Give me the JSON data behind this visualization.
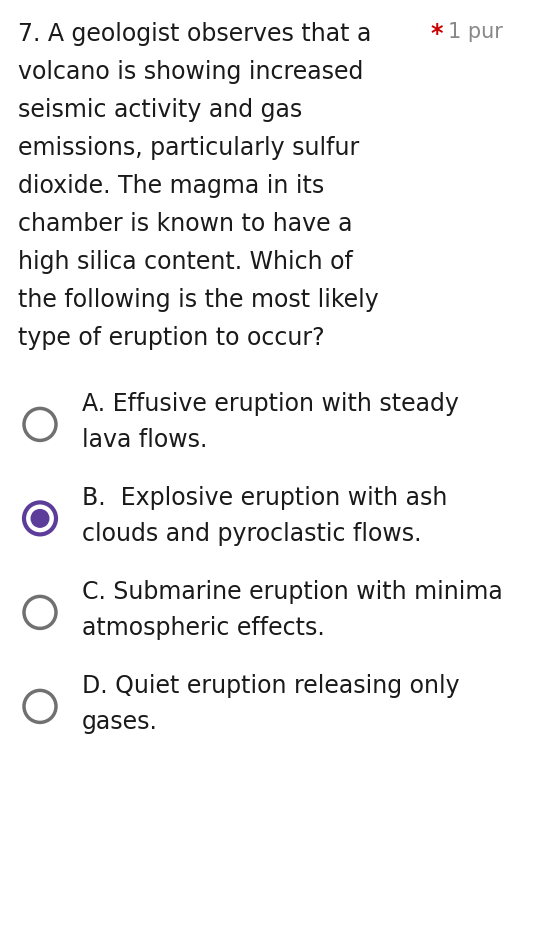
{
  "background_color": "#ffffff",
  "question_number": "7.",
  "question_text_lines": [
    "A geologist observes that a",
    "volcano is showing increased",
    "seismic activity and gas",
    "emissions, particularly sulfur",
    "dioxide. The magma in its",
    "chamber is known to have a",
    "high silica content. Which of",
    "the following is the most likely",
    "type of eruption to occur?"
  ],
  "header_star": "*",
  "header_points": "1 pur",
  "header_star_color": "#cc0000",
  "header_points_color": "#888888",
  "options": [
    {
      "label": "A.",
      "lines": [
        "Effusive eruption with steady",
        "lava flows."
      ],
      "selected": false
    },
    {
      "label": "B. ",
      "lines": [
        "Explosive eruption with ash",
        "clouds and pyroclastic flows."
      ],
      "selected": true
    },
    {
      "label": "C.",
      "lines": [
        "Submarine eruption with minima",
        "atmospheric effects."
      ],
      "selected": false
    },
    {
      "label": "D.",
      "lines": [
        "Quiet eruption releasing only",
        "gases."
      ],
      "selected": false
    }
  ],
  "radio_color_unselected": "#707070",
  "radio_color_selected_outer": "#5c3d99",
  "radio_color_selected_inner": "#5c3d99",
  "text_color": "#1a1a1a",
  "font_size_question": 17,
  "font_size_options": 17
}
